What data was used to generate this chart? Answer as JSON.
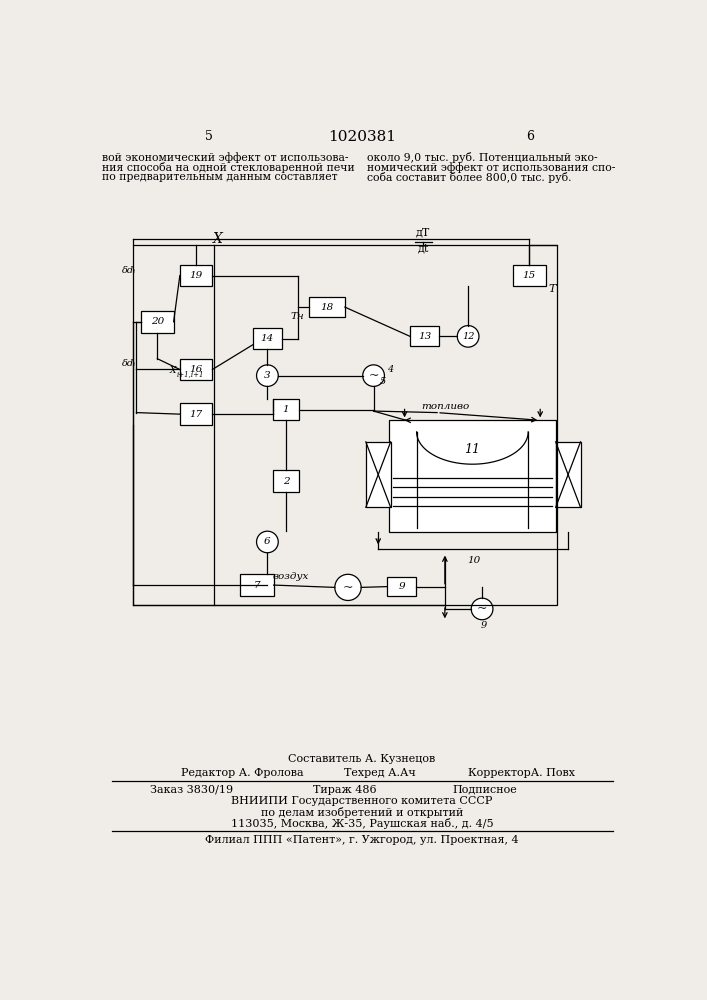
{
  "page_color": "#f0ede8",
  "title_number": "1020381",
  "page_left": "5",
  "page_right": "6",
  "text_left": "вой экономический эффект от использова-\nния способа на одной стекловаренной печи\nпо предварительным данным составляет",
  "text_right": "около 9,0 тыс. руб. Потенциальный эко-\nномический эффект от использования спо-\nсоба составит более 800,0 тыс. руб.",
  "footer_line1": "Составитель А. Кузнецов",
  "footer_line2_r": "Редактор А. Фролова",
  "footer_line2_t": "Техред А.Ач",
  "footer_line2_k": "КорректорА. Повх",
  "footer_line3_z": "Заказ 3830/19",
  "footer_line3_ti": "Тираж 486",
  "footer_line3_p": "Подписное",
  "footer_line4": "ВНИИПИ Государственного комитета СССР",
  "footer_line5": "по делам изобретений и открытий",
  "footer_line6": "113035, Москва, Ж-35, Раушская наб., д. 4/5",
  "footer_line7": "Филиал ППП «Патент», г. Ужгород, ул. Проектная, 4"
}
